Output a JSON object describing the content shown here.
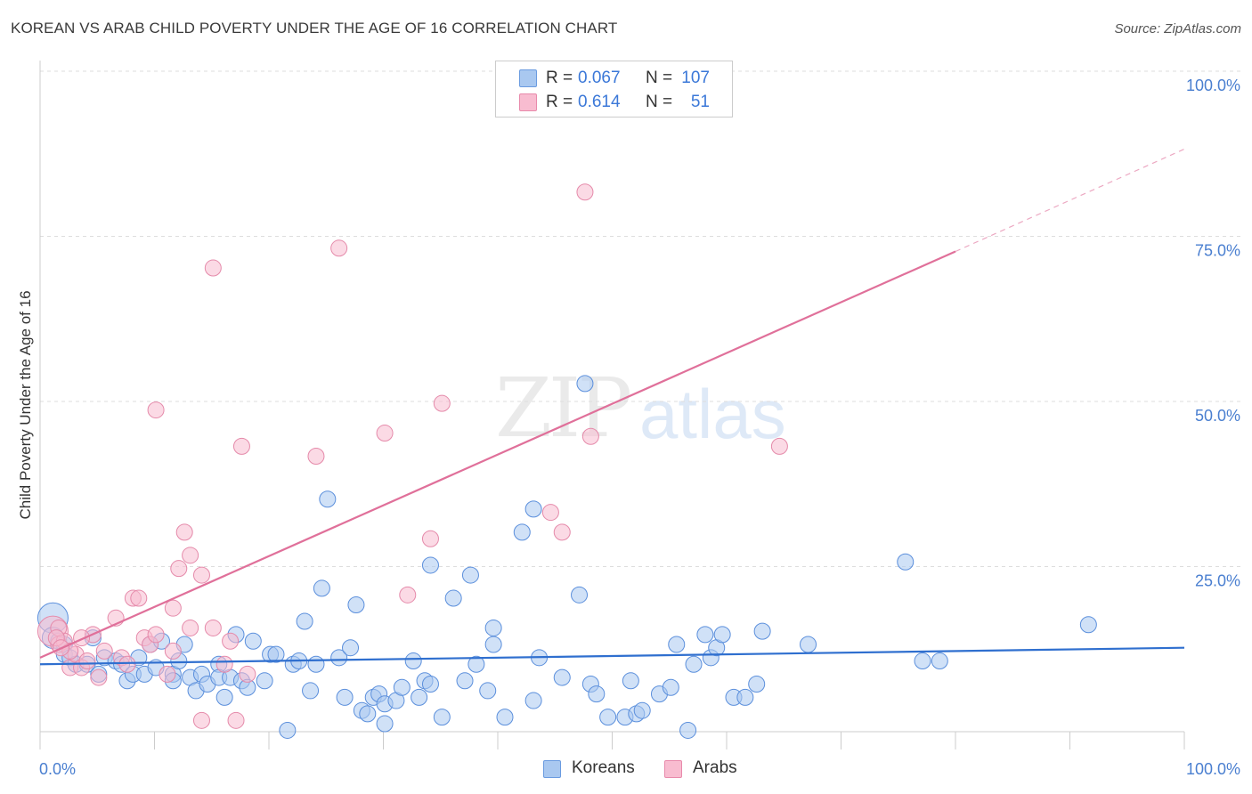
{
  "title": "KOREAN VS ARAB CHILD POVERTY UNDER THE AGE OF 16 CORRELATION CHART",
  "source": "Source: ZipAtlas.com",
  "watermark": {
    "part1": "ZIP",
    "part2": "atlas"
  },
  "legend": {
    "rows": [
      {
        "r_label": "R =",
        "r_value": "0.067",
        "n_label": "N =",
        "n_value": "107",
        "color": "#a9c8f0",
        "border": "#6a9be0"
      },
      {
        "r_label": "R =",
        "r_value": "0.614",
        "n_label": "N =",
        "n_value": "51",
        "color": "#f8bcd0",
        "border": "#e88aab"
      }
    ]
  },
  "bottom_legend": {
    "koreans": "Koreans",
    "arabs": "Arabs"
  },
  "colors": {
    "korean_fill": "#a9c8f0",
    "korean_stroke": "#5b8fdc",
    "korean_line": "#2f6fcf",
    "arab_fill": "#f8bcd0",
    "arab_stroke": "#e58aaa",
    "arab_line": "#e0709a",
    "tick_text": "#4a7fd0",
    "grid": "#dddddd"
  },
  "chart_data": {
    "type": "scatter",
    "title": "KOREAN VS ARAB CHILD POVERTY UNDER THE AGE OF 16 CORRELATION CHART",
    "xlabel": "",
    "ylabel": "Child Poverty Under the Age of 16",
    "xlim": [
      0,
      100
    ],
    "ylim": [
      0,
      100
    ],
    "x_tick_labels": [
      "0.0%",
      "100.0%"
    ],
    "y_tick_labels": [
      "100.0%",
      "75.0%",
      "50.0%",
      "25.0%"
    ],
    "y_tick_values": [
      100,
      75,
      50,
      25
    ],
    "grid": true,
    "legend_position": "top-center",
    "series": [
      {
        "name": "Koreans",
        "trendline": {
          "x": [
            0,
            100
          ],
          "y": [
            12.5,
            15.0
          ],
          "extrapolated_from": null
        },
        "points": [
          [
            0.5,
            19.5,
            "big"
          ],
          [
            0.5,
            16.5,
            "med"
          ],
          [
            1.0,
            16.0
          ],
          [
            1.5,
            15.5
          ],
          [
            1.5,
            14.0
          ],
          [
            2.0,
            13.5
          ],
          [
            2.5,
            12.5
          ],
          [
            3.5,
            12.5
          ],
          [
            4.0,
            16.5
          ],
          [
            4.5,
            11.0
          ],
          [
            5.0,
            13.5
          ],
          [
            6.0,
            13.0
          ],
          [
            6.5,
            12.5
          ],
          [
            7.0,
            10.0
          ],
          [
            7.5,
            11.0
          ],
          [
            8.0,
            13.5
          ],
          [
            8.5,
            11.0
          ],
          [
            9.0,
            15.5
          ],
          [
            9.5,
            12.0
          ],
          [
            10.0,
            16.0
          ],
          [
            11.0,
            11.0
          ],
          [
            11.0,
            10.0
          ],
          [
            11.5,
            13.0
          ],
          [
            12.0,
            15.5
          ],
          [
            12.5,
            10.5
          ],
          [
            13.0,
            8.5
          ],
          [
            13.5,
            11.0
          ],
          [
            14.0,
            9.5
          ],
          [
            15.0,
            12.5
          ],
          [
            15.0,
            10.5
          ],
          [
            15.5,
            7.5
          ],
          [
            16.0,
            10.5
          ],
          [
            16.5,
            17.0
          ],
          [
            17.0,
            10.0
          ],
          [
            17.5,
            9.0
          ],
          [
            18.0,
            16.0
          ],
          [
            19.0,
            10.0
          ],
          [
            19.5,
            14.0
          ],
          [
            20.0,
            14.0
          ],
          [
            21.0,
            2.5
          ],
          [
            21.5,
            12.5
          ],
          [
            22.0,
            13.0
          ],
          [
            22.5,
            19.0
          ],
          [
            23.0,
            8.5
          ],
          [
            23.5,
            12.5
          ],
          [
            24.0,
            24.0
          ],
          [
            24.5,
            37.5
          ],
          [
            25.5,
            13.5
          ],
          [
            26.0,
            7.5
          ],
          [
            26.5,
            15.0
          ],
          [
            27.0,
            21.5
          ],
          [
            27.5,
            5.5
          ],
          [
            28.0,
            5.0
          ],
          [
            28.5,
            7.5
          ],
          [
            29.0,
            8.0
          ],
          [
            29.5,
            3.5
          ],
          [
            29.5,
            6.5
          ],
          [
            30.5,
            7.0
          ],
          [
            31.0,
            9.0
          ],
          [
            32.0,
            13.0
          ],
          [
            32.5,
            7.5
          ],
          [
            33.0,
            10.0
          ],
          [
            33.5,
            9.5
          ],
          [
            33.5,
            27.5
          ],
          [
            34.5,
            4.5
          ],
          [
            35.5,
            22.5
          ],
          [
            36.5,
            10.0
          ],
          [
            37.0,
            26.0
          ],
          [
            37.5,
            12.5
          ],
          [
            38.5,
            8.5
          ],
          [
            39.0,
            18.0
          ],
          [
            39.0,
            15.5
          ],
          [
            40.0,
            4.5
          ],
          [
            41.5,
            32.5
          ],
          [
            42.5,
            7.0
          ],
          [
            42.5,
            36.0
          ],
          [
            43.0,
            13.5
          ],
          [
            45.0,
            10.5
          ],
          [
            46.5,
            23.0
          ],
          [
            47.0,
            55.0
          ],
          [
            47.5,
            9.5
          ],
          [
            48.0,
            8.0
          ],
          [
            49.0,
            4.5
          ],
          [
            50.5,
            4.5
          ],
          [
            51.0,
            10.0
          ],
          [
            51.5,
            5.0
          ],
          [
            52.0,
            5.5
          ],
          [
            53.5,
            8.0
          ],
          [
            54.5,
            9.0
          ],
          [
            55.0,
            15.5
          ],
          [
            56.0,
            2.5
          ],
          [
            56.5,
            12.5
          ],
          [
            57.5,
            17.0
          ],
          [
            58.0,
            13.5
          ],
          [
            58.5,
            15.0
          ],
          [
            59.0,
            17.0
          ],
          [
            60.0,
            7.5
          ],
          [
            61.0,
            7.5
          ],
          [
            62.0,
            9.5
          ],
          [
            62.5,
            17.5
          ],
          [
            66.5,
            15.5
          ],
          [
            75.0,
            28.0
          ],
          [
            76.5,
            13.0
          ],
          [
            78.0,
            13.0
          ],
          [
            91.0,
            18.5
          ]
        ]
      },
      {
        "name": "Arabs",
        "trendline": {
          "x": [
            0,
            80
          ],
          "y": [
            13.5,
            75.0
          ],
          "dashed_extension": {
            "x": [
              80,
              100
            ],
            "y": [
              75.0,
              90.5
            ]
          }
        },
        "points": [
          [
            0.5,
            17.5,
            "big"
          ],
          [
            1.0,
            15.5
          ],
          [
            1.5,
            16.0
          ],
          [
            2.0,
            12.0
          ],
          [
            2.5,
            14.0
          ],
          [
            3.0,
            12.0
          ],
          [
            3.5,
            13.0
          ],
          [
            4.0,
            17.0
          ],
          [
            4.5,
            10.5
          ],
          [
            5.0,
            14.5
          ],
          [
            6.0,
            19.5
          ],
          [
            6.5,
            13.5
          ],
          [
            7.0,
            12.5
          ],
          [
            7.5,
            22.5
          ],
          [
            8.0,
            22.5
          ],
          [
            8.5,
            16.5
          ],
          [
            9.0,
            15.5
          ],
          [
            9.5,
            17.0
          ],
          [
            9.5,
            51.0
          ],
          [
            10.5,
            11.0
          ],
          [
            11.0,
            14.5
          ],
          [
            11.0,
            21.0
          ],
          [
            11.5,
            27.0
          ],
          [
            12.0,
            32.5
          ],
          [
            12.5,
            18.0
          ],
          [
            12.5,
            29.0
          ],
          [
            13.5,
            4.0
          ],
          [
            13.5,
            26.0
          ],
          [
            14.5,
            18.0
          ],
          [
            14.5,
            72.5
          ],
          [
            15.5,
            12.5
          ],
          [
            16.0,
            16.0
          ],
          [
            16.5,
            4.0
          ],
          [
            17.0,
            45.5
          ],
          [
            17.5,
            11.0
          ],
          [
            23.5,
            44.0
          ],
          [
            25.5,
            75.5
          ],
          [
            29.5,
            47.5
          ],
          [
            31.5,
            23.0
          ],
          [
            33.5,
            31.5
          ],
          [
            34.5,
            52.0
          ],
          [
            44.0,
            35.5
          ],
          [
            45.0,
            32.5
          ],
          [
            47.0,
            84.0
          ],
          [
            47.5,
            47.0
          ],
          [
            64.0,
            45.5
          ],
          [
            1.0,
            18.0
          ],
          [
            2.0,
            14.5
          ],
          [
            0.8,
            16.5
          ],
          [
            1.2,
            15.0
          ],
          [
            3.0,
            16.5
          ]
        ]
      }
    ]
  }
}
